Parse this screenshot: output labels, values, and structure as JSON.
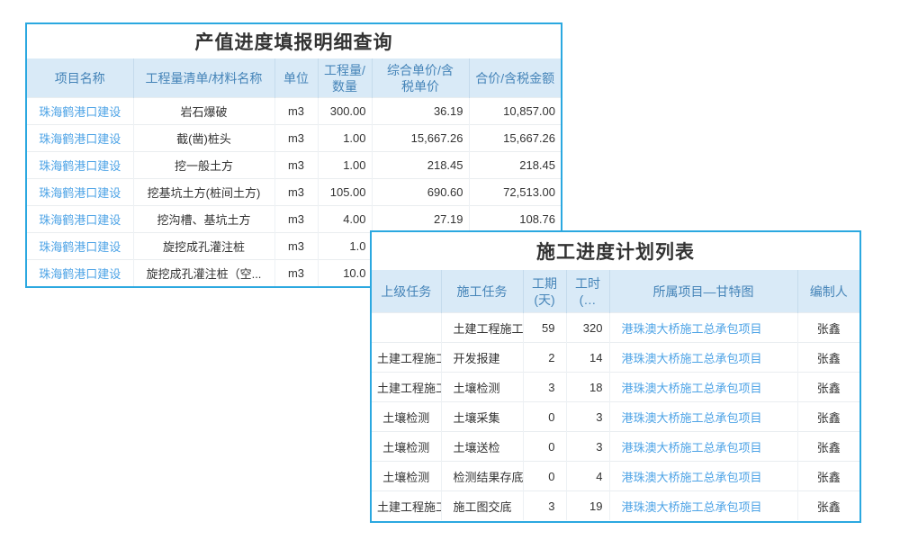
{
  "colors": {
    "card_border": "#2BA8E0",
    "header_bg": "#D9EAF7",
    "header_text": "#4584B8",
    "link_text": "#4DA3E6",
    "body_text": "#333333"
  },
  "table1": {
    "title": "产值进度填报明细查询",
    "columns": [
      "项目名称",
      "工程量清单/材料名称",
      "单位",
      "工程量/\n数量",
      "综合单价/含\n税单价",
      "合价/含税金额"
    ],
    "rows": [
      {
        "project": "珠海鹤港口建设",
        "item": "岩石爆破",
        "unit": "m3",
        "qty": "300.00",
        "price": "36.19",
        "amount": "10,857.00"
      },
      {
        "project": "珠海鹤港口建设",
        "item": "截(凿)桩头",
        "unit": "m3",
        "qty": "1.00",
        "price": "15,667.26",
        "amount": "15,667.26"
      },
      {
        "project": "珠海鹤港口建设",
        "item": "挖一般土方",
        "unit": "m3",
        "qty": "1.00",
        "price": "218.45",
        "amount": "218.45"
      },
      {
        "project": "珠海鹤港口建设",
        "item": "挖基坑土方(桩间土方)",
        "unit": "m3",
        "qty": "105.00",
        "price": "690.60",
        "amount": "72,513.00"
      },
      {
        "project": "珠海鹤港口建设",
        "item": "挖沟槽、基坑土方",
        "unit": "m3",
        "qty": "4.00",
        "price": "27.19",
        "amount": "108.76"
      },
      {
        "project": "珠海鹤港口建设",
        "item": "旋挖成孔灌注桩",
        "unit": "m3",
        "qty": "1.0",
        "price": "",
        "amount": ""
      },
      {
        "project": "珠海鹤港口建设",
        "item": "旋挖成孔灌注桩（空...",
        "unit": "m3",
        "qty": "10.0",
        "price": "",
        "amount": ""
      }
    ]
  },
  "table2": {
    "title": "施工进度计划列表",
    "columns": [
      "上级任务",
      "施工任务",
      "工期\n(天)",
      "工时\n(…",
      "所属项目—甘特图",
      "编制人"
    ],
    "rows": [
      {
        "parent": "",
        "task": "土建工程施工",
        "duration": "59",
        "hours": "320",
        "project": "港珠澳大桥施工总承包项目",
        "author": "张鑫"
      },
      {
        "parent": "土建工程施工",
        "task": "开发报建",
        "duration": "2",
        "hours": "14",
        "project": "港珠澳大桥施工总承包项目",
        "author": "张鑫"
      },
      {
        "parent": "土建工程施工",
        "task": "土壤检测",
        "duration": "3",
        "hours": "18",
        "project": "港珠澳大桥施工总承包项目",
        "author": "张鑫"
      },
      {
        "parent": "土壤检测",
        "task": "土壤采集",
        "duration": "0",
        "hours": "3",
        "project": "港珠澳大桥施工总承包项目",
        "author": "张鑫"
      },
      {
        "parent": "土壤检测",
        "task": "土壤送检",
        "duration": "0",
        "hours": "3",
        "project": "港珠澳大桥施工总承包项目",
        "author": "张鑫"
      },
      {
        "parent": "土壤检测",
        "task": "检测结果存底",
        "duration": "0",
        "hours": "4",
        "project": "港珠澳大桥施工总承包项目",
        "author": "张鑫"
      },
      {
        "parent": "土建工程施工",
        "task": "施工图交底",
        "duration": "3",
        "hours": "19",
        "project": "港珠澳大桥施工总承包项目",
        "author": "张鑫"
      }
    ]
  }
}
